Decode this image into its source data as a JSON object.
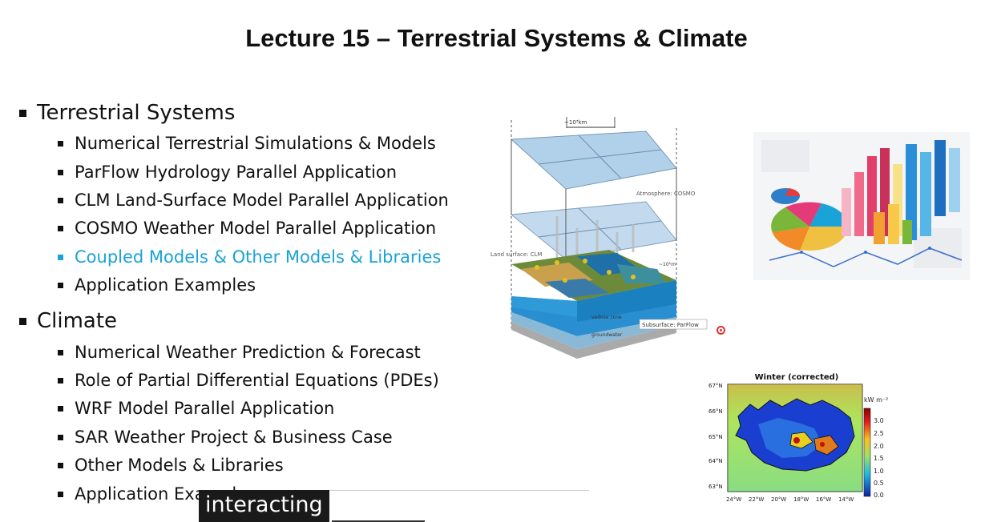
{
  "slide": {
    "title": "Lecture 15 – Terrestrial Systems & Climate"
  },
  "sections": [
    {
      "heading": "Terrestrial Systems",
      "items": [
        "Numerical Terrestrial Simulations & Models",
        "ParFlow Hydrology Parallel Application",
        "CLM Land-Surface Model Parallel Application",
        "COSMO Weather Model Parallel Application",
        "Coupled Models & Other Models & Libraries",
        "Application Examples"
      ],
      "active_index": 4
    },
    {
      "heading": "Climate",
      "items": [
        "Numerical Weather Prediction & Forecast",
        "Role of Partial Differential Equations (PDEs)",
        "WRF Model Parallel Application",
        "SAR Weather Project & Business Case",
        "Other Models & Libraries",
        "Application Examples"
      ]
    }
  ],
  "diagram": {
    "dimension_label": "~10³km",
    "atmosphere_label": "Atmosphere: COSMO",
    "land_label": "Land surface: CLM",
    "height_label": "~10¹m",
    "subsurface_label": "Subsurface: ParFlow",
    "vadose_label": "vadose zone",
    "groundwater_label": "groundwater"
  },
  "map": {
    "title": "Winter (corrected)",
    "colorbar_unit": "kW m⁻²",
    "colorbar_ticks": [
      "3.0",
      "2.5",
      "2.0",
      "1.5",
      "1.0",
      "0.5",
      "0.0"
    ],
    "lat_labels": [
      "67°N",
      "66°N",
      "65°N",
      "64°N",
      "63°N"
    ],
    "lon_labels": [
      "24°W",
      "22°W",
      "20°W",
      "18°W",
      "16°W",
      "14°W"
    ]
  },
  "caption": {
    "text": "interacting"
  },
  "colors": {
    "accent": "#19a3d6",
    "text": "#111111",
    "caption_bg": "#1a1a1a"
  }
}
